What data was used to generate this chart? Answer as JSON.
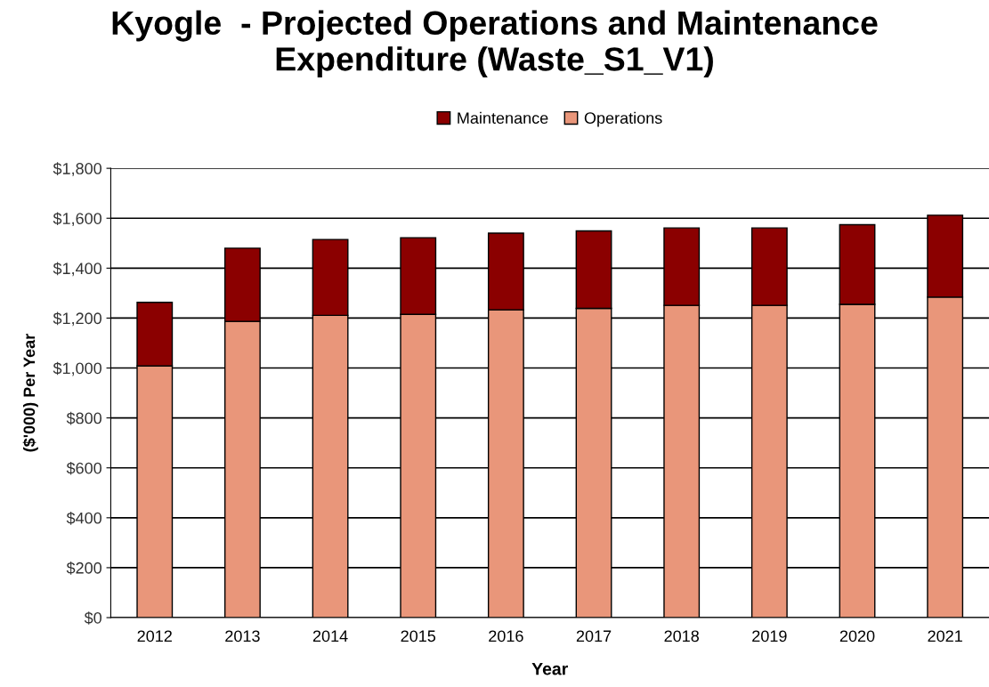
{
  "chart_data": {
    "type": "bar",
    "title": "Kyogle  - Projected Operations and Maintenance\nExpenditure (Waste_S1_V1)",
    "xlabel": "Year",
    "ylabel": "($'000) Per Year",
    "categories": [
      "2012",
      "2013",
      "2014",
      "2015",
      "2016",
      "2017",
      "2018",
      "2019",
      "2020",
      "2021"
    ],
    "stacked": true,
    "series": [
      {
        "name": "Operations",
        "color": "#e9967a",
        "values": [
          1008,
          1187,
          1211,
          1215,
          1233,
          1239,
          1251,
          1251,
          1255,
          1284
        ]
      },
      {
        "name": "Maintenance",
        "color": "#8b0000",
        "values": [
          255,
          293,
          304,
          307,
          307,
          310,
          310,
          310,
          319,
          328
        ]
      }
    ],
    "ylim": [
      0,
      1800
    ],
    "yticks": [
      {
        "value": 0,
        "label": "$0"
      },
      {
        "value": 200,
        "label": "$200"
      },
      {
        "value": 400,
        "label": "$400"
      },
      {
        "value": 600,
        "label": "$600"
      },
      {
        "value": 800,
        "label": "$800"
      },
      {
        "value": 1000,
        "label": "$1,000"
      },
      {
        "value": 1200,
        "label": "$1,200"
      },
      {
        "value": 1400,
        "label": "$1,400"
      },
      {
        "value": 1600,
        "label": "$1,600"
      },
      {
        "value": 1800,
        "label": "$1,800"
      }
    ],
    "grid": "y",
    "legend": "top"
  }
}
